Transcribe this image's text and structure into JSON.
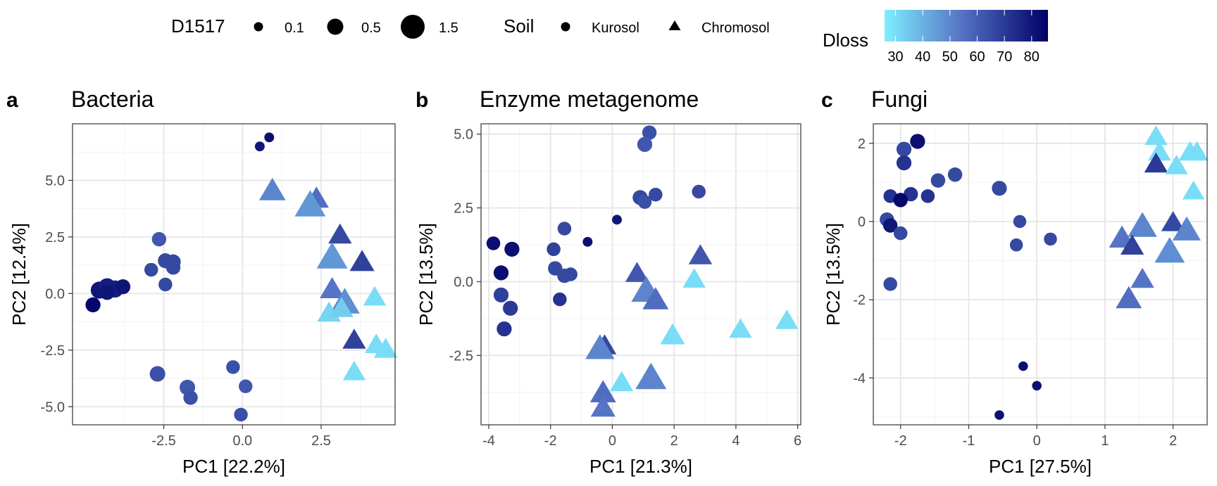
{
  "legend": {
    "size": {
      "title": "D1517",
      "entries": [
        {
          "label": "0.1",
          "value": 0.1
        },
        {
          "label": "0.5",
          "value": 0.5
        },
        {
          "label": "1.5",
          "value": 1.5
        }
      ]
    },
    "shape": {
      "title": "Soil",
      "entries": [
        {
          "label": "Kurosol",
          "shape": "circle"
        },
        {
          "label": "Chromosol",
          "shape": "triangle"
        }
      ]
    },
    "color": {
      "title": "Dloss",
      "range": [
        26,
        86
      ],
      "ticks": [
        30,
        40,
        50,
        60,
        70,
        80
      ],
      "low_color": "#7fefff",
      "high_color": "#000066"
    }
  },
  "chart_data": [
    {
      "tag": "a",
      "title": "Bacteria",
      "type": "scatter",
      "xlabel": "PC1   [22.2%]",
      "ylabel": "PC2   [12.4%]",
      "xlim": [
        -5.4,
        4.85
      ],
      "ylim": [
        -5.8,
        7.5
      ],
      "xticks": [
        -2.5,
        0.0,
        2.5
      ],
      "xtick_labels": [
        "-2.5",
        "0.0",
        "2.5"
      ],
      "yticks": [
        -5.0,
        -2.5,
        0.0,
        2.5,
        5.0
      ],
      "ytick_labels": [
        "-5.0",
        "-2.5",
        "0.0",
        "2.5",
        "5.0"
      ],
      "points": [
        {
          "x": 0.55,
          "y": 6.5,
          "dloss": 80,
          "size": 0.08,
          "soil": "Kurosol"
        },
        {
          "x": 0.85,
          "y": 6.9,
          "dloss": 82,
          "size": 0.08,
          "soil": "Kurosol"
        },
        {
          "x": -2.65,
          "y": 2.4,
          "dloss": 62,
          "size": 0.35,
          "soil": "Kurosol"
        },
        {
          "x": -2.45,
          "y": 1.45,
          "dloss": 66,
          "size": 0.4,
          "soil": "Kurosol"
        },
        {
          "x": -2.2,
          "y": 1.4,
          "dloss": 66,
          "size": 0.4,
          "soil": "Kurosol"
        },
        {
          "x": -2.2,
          "y": 1.15,
          "dloss": 66,
          "size": 0.35,
          "soil": "Kurosol"
        },
        {
          "x": -2.9,
          "y": 1.05,
          "dloss": 66,
          "size": 0.3,
          "soil": "Kurosol"
        },
        {
          "x": -2.45,
          "y": 0.4,
          "dloss": 66,
          "size": 0.3,
          "soil": "Kurosol"
        },
        {
          "x": -4.55,
          "y": 0.15,
          "dloss": 80,
          "size": 0.6,
          "soil": "Kurosol"
        },
        {
          "x": -4.3,
          "y": 0.3,
          "dloss": 78,
          "size": 0.6,
          "soil": "Kurosol"
        },
        {
          "x": -4.05,
          "y": 0.2,
          "dloss": 78,
          "size": 0.6,
          "soil": "Kurosol"
        },
        {
          "x": -3.8,
          "y": 0.3,
          "dloss": 80,
          "size": 0.4,
          "soil": "Kurosol"
        },
        {
          "x": -4.75,
          "y": -0.5,
          "dloss": 84,
          "size": 0.4,
          "soil": "Kurosol"
        },
        {
          "x": -4.3,
          "y": 0.05,
          "dloss": 80,
          "size": 0.4,
          "soil": "Kurosol"
        },
        {
          "x": -2.7,
          "y": -3.55,
          "dloss": 64,
          "size": 0.45,
          "soil": "Kurosol"
        },
        {
          "x": -1.75,
          "y": -4.15,
          "dloss": 62,
          "size": 0.45,
          "soil": "Kurosol"
        },
        {
          "x": -1.65,
          "y": -4.6,
          "dloss": 64,
          "size": 0.35,
          "soil": "Kurosol"
        },
        {
          "x": -0.3,
          "y": -3.25,
          "dloss": 64,
          "size": 0.3,
          "soil": "Kurosol"
        },
        {
          "x": 0.1,
          "y": -4.1,
          "dloss": 62,
          "size": 0.3,
          "soil": "Kurosol"
        },
        {
          "x": -0.05,
          "y": -5.35,
          "dloss": 64,
          "size": 0.3,
          "soil": "Kurosol"
        },
        {
          "x": 0.95,
          "y": 4.5,
          "dloss": 50,
          "size": 0.85,
          "soil": "Chromosol"
        },
        {
          "x": 2.35,
          "y": 4.15,
          "dloss": 56,
          "size": 0.7,
          "soil": "Chromosol"
        },
        {
          "x": 2.15,
          "y": 3.85,
          "dloss": 46,
          "size": 1.3,
          "soil": "Chromosol"
        },
        {
          "x": 3.1,
          "y": 2.55,
          "dloss": 66,
          "size": 0.6,
          "soil": "Chromosol"
        },
        {
          "x": 2.85,
          "y": 1.55,
          "dloss": 46,
          "size": 1.3,
          "soil": "Chromosol"
        },
        {
          "x": 3.8,
          "y": 1.35,
          "dloss": 68,
          "size": 0.7,
          "soil": "Chromosol"
        },
        {
          "x": 2.85,
          "y": 0.15,
          "dloss": 54,
          "size": 0.7,
          "soil": "Chromosol"
        },
        {
          "x": 3.25,
          "y": -0.45,
          "dloss": 48,
          "size": 1.2,
          "soil": "Chromosol"
        },
        {
          "x": 2.75,
          "y": -0.9,
          "dloss": 32,
          "size": 0.6,
          "soil": "Chromosol"
        },
        {
          "x": 3.15,
          "y": -0.7,
          "dloss": 34,
          "size": 0.6,
          "soil": "Chromosol"
        },
        {
          "x": 4.2,
          "y": -0.2,
          "dloss": 30,
          "size": 0.55,
          "soil": "Chromosol"
        },
        {
          "x": 3.55,
          "y": -2.1,
          "dloss": 68,
          "size": 0.6,
          "soil": "Chromosol"
        },
        {
          "x": 4.25,
          "y": -2.3,
          "dloss": 30,
          "size": 0.55,
          "soil": "Chromosol"
        },
        {
          "x": 4.55,
          "y": -2.5,
          "dloss": 30,
          "size": 0.6,
          "soil": "Chromosol"
        },
        {
          "x": 3.55,
          "y": -3.5,
          "dloss": 30,
          "size": 0.55,
          "soil": "Chromosol"
        }
      ]
    },
    {
      "tag": "b",
      "title": "Enzyme metagenome",
      "type": "scatter",
      "xlabel": "PC1   [21.3%]",
      "ylabel": "PC2   [13.5%]",
      "xlim": [
        -4.25,
        6.1
      ],
      "ylim": [
        -4.85,
        5.35
      ],
      "xticks": [
        -4,
        -2,
        0,
        2,
        4,
        6
      ],
      "xtick_labels": [
        "-4",
        "-2",
        "0",
        "2",
        "4",
        "6"
      ],
      "yticks": [
        -2.5,
        0.0,
        2.5,
        5.0
      ],
      "ytick_labels": [
        "-2.5",
        "0.0",
        "2.5",
        "5.0"
      ],
      "points": [
        {
          "x": 1.2,
          "y": 5.05,
          "dloss": 64,
          "size": 0.35,
          "soil": "Kurosol"
        },
        {
          "x": 1.05,
          "y": 4.65,
          "dloss": 62,
          "size": 0.4,
          "soil": "Kurosol"
        },
        {
          "x": 0.9,
          "y": 2.85,
          "dloss": 66,
          "size": 0.4,
          "soil": "Kurosol"
        },
        {
          "x": 1.05,
          "y": 2.7,
          "dloss": 64,
          "size": 0.3,
          "soil": "Kurosol"
        },
        {
          "x": 1.4,
          "y": 2.95,
          "dloss": 66,
          "size": 0.3,
          "soil": "Kurosol"
        },
        {
          "x": 2.8,
          "y": 3.05,
          "dloss": 66,
          "size": 0.3,
          "soil": "Kurosol"
        },
        {
          "x": 0.15,
          "y": 2.1,
          "dloss": 80,
          "size": 0.08,
          "soil": "Kurosol"
        },
        {
          "x": -0.8,
          "y": 1.35,
          "dloss": 82,
          "size": 0.08,
          "soil": "Kurosol"
        },
        {
          "x": -1.55,
          "y": 1.8,
          "dloss": 66,
          "size": 0.3,
          "soil": "Kurosol"
        },
        {
          "x": -1.9,
          "y": 1.1,
          "dloss": 68,
          "size": 0.3,
          "soil": "Kurosol"
        },
        {
          "x": -3.85,
          "y": 1.3,
          "dloss": 82,
          "size": 0.3,
          "soil": "Kurosol"
        },
        {
          "x": -3.25,
          "y": 1.1,
          "dloss": 82,
          "size": 0.4,
          "soil": "Kurosol"
        },
        {
          "x": -3.6,
          "y": 0.3,
          "dloss": 82,
          "size": 0.4,
          "soil": "Kurosol"
        },
        {
          "x": -1.85,
          "y": 0.45,
          "dloss": 66,
          "size": 0.35,
          "soil": "Kurosol"
        },
        {
          "x": -1.55,
          "y": 0.2,
          "dloss": 66,
          "size": 0.35,
          "soil": "Kurosol"
        },
        {
          "x": -1.35,
          "y": 0.25,
          "dloss": 66,
          "size": 0.3,
          "soil": "Kurosol"
        },
        {
          "x": -3.6,
          "y": -0.45,
          "dloss": 68,
          "size": 0.4,
          "soil": "Kurosol"
        },
        {
          "x": -1.7,
          "y": -0.6,
          "dloss": 72,
          "size": 0.3,
          "soil": "Kurosol"
        },
        {
          "x": -3.3,
          "y": -0.9,
          "dloss": 70,
          "size": 0.4,
          "soil": "Kurosol"
        },
        {
          "x": -3.5,
          "y": -1.6,
          "dloss": 72,
          "size": 0.4,
          "soil": "Kurosol"
        },
        {
          "x": 2.85,
          "y": 0.85,
          "dloss": 62,
          "size": 0.6,
          "soil": "Chromosol"
        },
        {
          "x": 0.8,
          "y": 0.25,
          "dloss": 62,
          "size": 0.6,
          "soil": "Chromosol"
        },
        {
          "x": 1.1,
          "y": -0.35,
          "dloss": 50,
          "size": 1.2,
          "soil": "Chromosol"
        },
        {
          "x": 1.4,
          "y": -0.65,
          "dloss": 56,
          "size": 0.8,
          "soil": "Chromosol"
        },
        {
          "x": 2.65,
          "y": 0.05,
          "dloss": 30,
          "size": 0.55,
          "soil": "Chromosol"
        },
        {
          "x": 1.95,
          "y": -1.85,
          "dloss": 30,
          "size": 0.7,
          "soil": "Chromosol"
        },
        {
          "x": 4.15,
          "y": -1.65,
          "dloss": 30,
          "size": 0.55,
          "soil": "Chromosol"
        },
        {
          "x": 5.65,
          "y": -1.35,
          "dloss": 30,
          "size": 0.55,
          "soil": "Chromosol"
        },
        {
          "x": -0.25,
          "y": -2.2,
          "dloss": 66,
          "size": 0.6,
          "soil": "Chromosol"
        },
        {
          "x": -0.4,
          "y": -2.3,
          "dloss": 50,
          "size": 1.1,
          "soil": "Chromosol"
        },
        {
          "x": 0.3,
          "y": -3.45,
          "dloss": 30,
          "size": 0.6,
          "soil": "Chromosol"
        },
        {
          "x": 1.25,
          "y": -3.3,
          "dloss": 50,
          "size": 1.3,
          "soil": "Chromosol"
        },
        {
          "x": -0.3,
          "y": -3.8,
          "dloss": 56,
          "size": 0.8,
          "soil": "Chromosol"
        },
        {
          "x": -0.3,
          "y": -4.3,
          "dloss": 54,
          "size": 0.7,
          "soil": "Chromosol"
        }
      ]
    },
    {
      "tag": "c",
      "title": "Fungi",
      "type": "scatter",
      "xlabel": "PC1   [27.5%]",
      "ylabel": "PC2   [13.5%]",
      "xlim": [
        -2.4,
        2.5
      ],
      "ylim": [
        -5.2,
        2.5
      ],
      "xticks": [
        -2,
        -1,
        0,
        1,
        2
      ],
      "xtick_labels": [
        "-2",
        "-1",
        "0",
        "1",
        "2"
      ],
      "yticks": [
        -4,
        -2,
        0,
        2
      ],
      "ytick_labels": [
        "-4",
        "-2",
        "0",
        "2"
      ],
      "points": [
        {
          "x": -1.75,
          "y": 2.05,
          "dloss": 82,
          "size": 0.4,
          "soil": "Kurosol"
        },
        {
          "x": -1.95,
          "y": 1.85,
          "dloss": 66,
          "size": 0.4,
          "soil": "Kurosol"
        },
        {
          "x": -1.95,
          "y": 1.5,
          "dloss": 72,
          "size": 0.4,
          "soil": "Kurosol"
        },
        {
          "x": -1.2,
          "y": 1.2,
          "dloss": 66,
          "size": 0.35,
          "soil": "Kurosol"
        },
        {
          "x": -1.45,
          "y": 1.05,
          "dloss": 66,
          "size": 0.35,
          "soil": "Kurosol"
        },
        {
          "x": -0.55,
          "y": 0.85,
          "dloss": 66,
          "size": 0.4,
          "soil": "Kurosol"
        },
        {
          "x": -1.85,
          "y": 0.7,
          "dloss": 72,
          "size": 0.35,
          "soil": "Kurosol"
        },
        {
          "x": -1.6,
          "y": 0.65,
          "dloss": 72,
          "size": 0.3,
          "soil": "Kurosol"
        },
        {
          "x": -2.15,
          "y": 0.65,
          "dloss": 72,
          "size": 0.3,
          "soil": "Kurosol"
        },
        {
          "x": -2.0,
          "y": 0.55,
          "dloss": 84,
          "size": 0.35,
          "soil": "Kurosol"
        },
        {
          "x": -2.2,
          "y": 0.05,
          "dloss": 66,
          "size": 0.35,
          "soil": "Kurosol"
        },
        {
          "x": -2.15,
          "y": -0.1,
          "dloss": 80,
          "size": 0.35,
          "soil": "Kurosol"
        },
        {
          "x": -2.0,
          "y": -0.3,
          "dloss": 66,
          "size": 0.3,
          "soil": "Kurosol"
        },
        {
          "x": -0.25,
          "y": 0.0,
          "dloss": 66,
          "size": 0.25,
          "soil": "Kurosol"
        },
        {
          "x": -0.3,
          "y": -0.6,
          "dloss": 66,
          "size": 0.25,
          "soil": "Kurosol"
        },
        {
          "x": 0.2,
          "y": -0.45,
          "dloss": 66,
          "size": 0.25,
          "soil": "Kurosol"
        },
        {
          "x": -2.15,
          "y": -1.6,
          "dloss": 66,
          "size": 0.3,
          "soil": "Kurosol"
        },
        {
          "x": -0.2,
          "y": -3.7,
          "dloss": 82,
          "size": 0.07,
          "soil": "Kurosol"
        },
        {
          "x": 0.0,
          "y": -4.2,
          "dloss": 82,
          "size": 0.07,
          "soil": "Kurosol"
        },
        {
          "x": -0.55,
          "y": -4.95,
          "dloss": 82,
          "size": 0.07,
          "soil": "Kurosol"
        },
        {
          "x": 1.75,
          "y": 2.15,
          "dloss": 30,
          "size": 0.55,
          "soil": "Chromosol"
        },
        {
          "x": 1.8,
          "y": 1.75,
          "dloss": 30,
          "size": 0.55,
          "soil": "Chromosol"
        },
        {
          "x": 2.25,
          "y": 1.75,
          "dloss": 30,
          "size": 0.55,
          "soil": "Chromosol"
        },
        {
          "x": 2.35,
          "y": 1.75,
          "dloss": 30,
          "size": 0.55,
          "soil": "Chromosol"
        },
        {
          "x": 1.75,
          "y": 1.45,
          "dloss": 70,
          "size": 0.6,
          "soil": "Chromosol"
        },
        {
          "x": 2.05,
          "y": 1.4,
          "dloss": 30,
          "size": 0.55,
          "soil": "Chromosol"
        },
        {
          "x": 2.3,
          "y": 0.75,
          "dloss": 30,
          "size": 0.5,
          "soil": "Chromosol"
        },
        {
          "x": 2.0,
          "y": -0.05,
          "dloss": 66,
          "size": 0.6,
          "soil": "Chromosol"
        },
        {
          "x": 1.55,
          "y": -0.15,
          "dloss": 50,
          "size": 1.1,
          "soil": "Chromosol"
        },
        {
          "x": 2.2,
          "y": -0.25,
          "dloss": 50,
          "size": 1.0,
          "soil": "Chromosol"
        },
        {
          "x": 1.25,
          "y": -0.45,
          "dloss": 54,
          "size": 0.8,
          "soil": "Chromosol"
        },
        {
          "x": 1.4,
          "y": -0.65,
          "dloss": 68,
          "size": 0.6,
          "soil": "Chromosol"
        },
        {
          "x": 1.95,
          "y": -0.8,
          "dloss": 48,
          "size": 1.2,
          "soil": "Chromosol"
        },
        {
          "x": 1.55,
          "y": -1.5,
          "dloss": 54,
          "size": 0.6,
          "soil": "Chromosol"
        },
        {
          "x": 1.35,
          "y": -2.0,
          "dloss": 56,
          "size": 0.8,
          "soil": "Chromosol"
        }
      ]
    }
  ]
}
